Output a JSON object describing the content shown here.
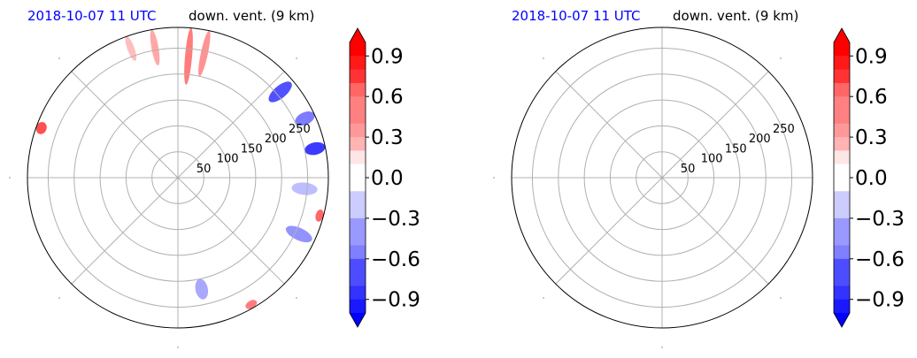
{
  "chart_data": [
    {
      "type": "heatmap",
      "projection": "polar",
      "title_left": "2018-10-07 11 UTC",
      "title_right": "down. vent. (9 km)",
      "title_left_color": "#0000ff",
      "radial_ticks": [
        "50",
        "100",
        "150",
        "200",
        "250"
      ],
      "radial_tick_values": [
        50,
        100,
        150,
        200,
        250
      ],
      "rmax": 290,
      "grid": true,
      "colorbar": {
        "cmap": "bwr",
        "vmin": -1.0,
        "vmax": 1.0,
        "ticks": [
          "0.9",
          "0.6",
          "0.3",
          "0.0",
          "−0.3",
          "−0.6",
          "−0.9"
        ],
        "tick_values": [
          0.9,
          0.6,
          0.3,
          0.0,
          -0.3,
          -0.6,
          -0.9
        ],
        "extend": "both"
      },
      "background_value": 0.03,
      "features": [
        {
          "kind": "streak",
          "value": 0.6,
          "angle_deg": 85,
          "r": [
            180,
            290
          ]
        },
        {
          "kind": "streak",
          "value": 0.5,
          "angle_deg": 78,
          "r": [
            200,
            290
          ]
        },
        {
          "kind": "streak",
          "value": 0.4,
          "angle_deg": 100,
          "r": [
            220,
            290
          ]
        },
        {
          "kind": "streak",
          "value": 0.3,
          "angle_deg": 110,
          "r": [
            240,
            290
          ]
        },
        {
          "kind": "patch",
          "value": -0.8,
          "angle_deg": 40,
          "r": [
            230,
            285
          ]
        },
        {
          "kind": "patch",
          "value": -0.9,
          "angle_deg": 12,
          "r": [
            250,
            290
          ]
        },
        {
          "kind": "patch",
          "value": -0.6,
          "angle_deg": 25,
          "r": [
            250,
            290
          ]
        },
        {
          "kind": "patch",
          "value": -0.5,
          "angle_deg": -25,
          "r": [
            230,
            285
          ]
        },
        {
          "kind": "patch",
          "value": -0.4,
          "angle_deg": -78,
          "r": [
            200,
            240
          ]
        },
        {
          "kind": "patch",
          "value": -0.3,
          "angle_deg": -5,
          "r": [
            220,
            270
          ]
        },
        {
          "kind": "patch",
          "value": 0.8,
          "angle_deg": 160,
          "r": [
            270,
            290
          ]
        },
        {
          "kind": "patch",
          "value": 0.7,
          "angle_deg": -15,
          "r": [
            275,
            290
          ]
        },
        {
          "kind": "patch",
          "value": 0.6,
          "angle_deg": -60,
          "r": [
            275,
            290
          ]
        }
      ]
    },
    {
      "type": "heatmap",
      "projection": "polar",
      "title_left": "2018-10-07 11 UTC",
      "title_right": "down. vent. (9 km)",
      "title_left_color": "#0000ff",
      "radial_ticks": [
        "50",
        "100",
        "150",
        "200",
        "250"
      ],
      "radial_tick_values": [
        50,
        100,
        150,
        200,
        250
      ],
      "rmax": 290,
      "grid": true,
      "colorbar": {
        "cmap": "bwr",
        "vmin": -1.0,
        "vmax": 1.0,
        "ticks": [
          "0.9",
          "0.6",
          "0.3",
          "0.0",
          "−0.3",
          "−0.6",
          "−0.9"
        ],
        "tick_values": [
          0.9,
          0.6,
          0.3,
          0.0,
          -0.3,
          -0.6,
          -0.9
        ],
        "extend": "both"
      },
      "background_value": 0.03,
      "features": []
    }
  ]
}
